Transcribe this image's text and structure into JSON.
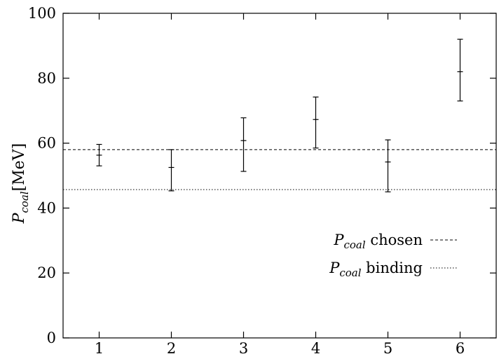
{
  "chart_data": {
    "type": "scatter",
    "title": "",
    "xlabel": "",
    "ylabel": {
      "symbol": "P",
      "subscript": "coal",
      "unit": "[MeV]"
    },
    "xlim": [
      0.5,
      6.5
    ],
    "ylim": [
      0,
      100
    ],
    "x_ticks": [
      "1",
      "2",
      "3",
      "4",
      "5",
      "6"
    ],
    "y_ticks": [
      "0",
      "20",
      "40",
      "60",
      "80",
      "100"
    ],
    "grid": false,
    "legend_position": "center-right",
    "series": [
      {
        "kind": "errorbar",
        "points": [
          {
            "x": 1,
            "y": 56.3,
            "y_low": 53.0,
            "y_high": 59.6
          },
          {
            "x": 2,
            "y": 52.5,
            "y_low": 45.3,
            "y_high": 58.0
          },
          {
            "x": 3,
            "y": 60.8,
            "y_low": 51.3,
            "y_high": 67.8
          },
          {
            "x": 4,
            "y": 67.3,
            "y_low": 58.5,
            "y_high": 74.2
          },
          {
            "x": 5,
            "y": 54.2,
            "y_low": 45.0,
            "y_high": 61.0
          },
          {
            "x": 6,
            "y": 82.0,
            "y_low": 73.0,
            "y_high": 92.0
          }
        ]
      }
    ],
    "reference_lines": [
      {
        "symbol": "P",
        "subscript": "coal",
        "label": "chosen",
        "y": 58.0,
        "style": "dashed",
        "color": "#000000"
      },
      {
        "symbol": "P",
        "subscript": "coal",
        "label": "binding",
        "y": 45.7,
        "style": "dotted",
        "color": "#000000"
      }
    ]
  }
}
